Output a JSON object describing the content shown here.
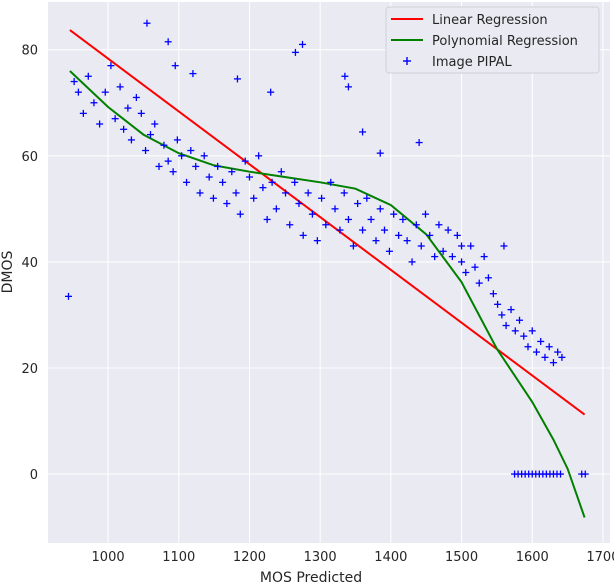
{
  "chart_data": {
    "type": "scatter",
    "title": "",
    "xlabel": "MOS Predicted",
    "ylabel": "DMOS",
    "xlim": [
      915,
      1710
    ],
    "ylim": [
      -13,
      89
    ],
    "x_ticks": [
      1000,
      1100,
      1200,
      1300,
      1400,
      1500,
      1600,
      1700
    ],
    "y_ticks": [
      0,
      20,
      40,
      60,
      80
    ],
    "grid": true,
    "legend_position": "top-right",
    "colors": {
      "background": "#eaeaf2",
      "grid": "#ffffff",
      "linear": "#ff0000",
      "polynomial": "#008000",
      "points": "#0000ff"
    },
    "series": [
      {
        "name": "Linear Regression",
        "kind": "line",
        "x": [
          946,
          1674
        ],
        "y": [
          83.7,
          11.2
        ]
      },
      {
        "name": "Polynomial Regression",
        "kind": "line",
        "x": [
          946,
          1000,
          1050,
          1100,
          1150,
          1200,
          1250,
          1300,
          1350,
          1400,
          1450,
          1500,
          1550,
          1600,
          1630,
          1650,
          1674
        ],
        "y": [
          76,
          69.2,
          64,
          60.5,
          58.2,
          57,
          56,
          55,
          53.8,
          50.7,
          45.2,
          36.2,
          23.6,
          13.6,
          6.5,
          1,
          -8.2
        ]
      },
      {
        "name": "Image PIPAL",
        "kind": "scatter",
        "x": [
          944,
          952,
          958,
          965,
          972,
          980,
          988,
          996,
          1004,
          1010,
          1017,
          1022,
          1028,
          1033,
          1040,
          1047,
          1053,
          1060,
          1066,
          1072,
          1079,
          1085,
          1092,
          1098,
          1104,
          1111,
          1117,
          1124,
          1130,
          1136,
          1143,
          1149,
          1155,
          1162,
          1168,
          1175,
          1181,
          1187,
          1194,
          1200,
          1206,
          1213,
          1219,
          1225,
          1232,
          1238,
          1245,
          1251,
          1257,
          1264,
          1270,
          1276,
          1283,
          1289,
          1296,
          1302,
          1308,
          1315,
          1321,
          1328,
          1334,
          1340,
          1347,
          1353,
          1360,
          1366,
          1372,
          1379,
          1385,
          1391,
          1398,
          1404,
          1411,
          1417,
          1423,
          1430,
          1436,
          1443,
          1449,
          1455,
          1462,
          1468,
          1474,
          1481,
          1487,
          1494,
          1500,
          1506,
          1513,
          1519,
          1525,
          1532,
          1538,
          1545,
          1551,
          1557,
          1563,
          1570,
          1576,
          1582,
          1588,
          1594,
          1600,
          1606,
          1612,
          1618,
          1624,
          1630,
          1636,
          1642,
          1055,
          1085,
          1095,
          1120,
          1183,
          1230,
          1265,
          1275,
          1335,
          1340,
          1360,
          1385,
          1440,
          1500,
          1560,
          1575,
          1580,
          1585,
          1590,
          1595,
          1600,
          1605,
          1610,
          1615,
          1620,
          1625,
          1630,
          1635,
          1640,
          1670,
          1675
        ],
        "y": [
          33.5,
          74,
          72,
          68,
          75,
          70,
          66,
          72,
          77,
          67,
          73,
          65,
          69,
          63,
          71,
          68,
          61,
          64,
          66,
          58,
          62,
          59,
          57,
          63,
          60,
          55,
          61,
          58,
          53,
          60,
          56,
          52,
          58,
          55,
          51,
          57,
          53,
          49,
          59,
          56,
          52,
          60,
          54,
          48,
          55,
          50,
          57,
          53,
          47,
          55,
          51,
          45,
          53,
          49,
          44,
          52,
          47,
          55,
          50,
          46,
          53,
          48,
          43,
          51,
          46,
          52,
          48,
          44,
          50,
          46,
          42,
          49,
          45,
          48,
          44,
          40,
          47,
          43,
          49,
          45,
          41,
          47,
          42,
          46,
          41,
          45,
          40,
          38,
          43,
          39,
          36,
          41,
          37,
          34,
          32,
          30,
          28,
          31,
          27,
          29,
          26,
          24,
          27,
          23,
          25,
          22,
          24,
          21,
          23,
          22,
          85,
          81.5,
          77,
          75.5,
          74.5,
          72,
          79.5,
          81,
          75,
          73,
          64.5,
          60.5,
          62.5,
          43,
          43,
          0,
          0,
          0,
          0,
          0,
          0,
          0,
          0,
          0,
          0,
          0,
          0,
          0,
          0,
          0,
          0
        ]
      }
    ]
  }
}
